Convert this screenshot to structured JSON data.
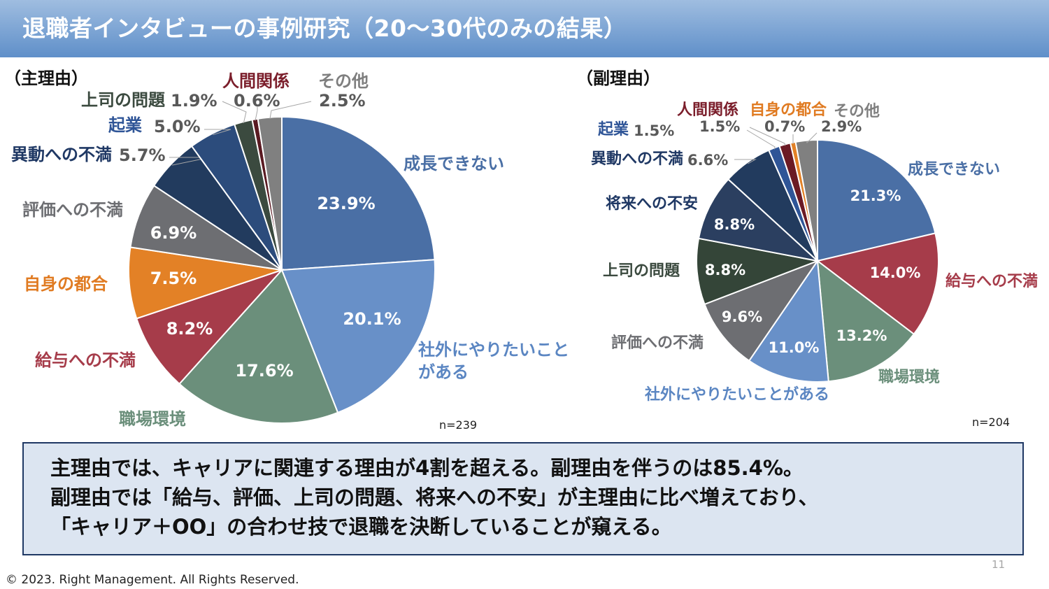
{
  "title": "退職者インタビューの事例研究（20〜30代のみの結果）",
  "chart_data": [
    {
      "type": "pie",
      "title": "（主理由）",
      "n_label": "n=239",
      "slices": [
        {
          "label": "成長できない",
          "value": 23.9,
          "text": "23.9%",
          "color": "#4a6fa5",
          "label_color": "#4a6fa5"
        },
        {
          "label": "社外にやりたいことがある",
          "label_lines": [
            "社外にやりたいこと",
            "がある"
          ],
          "value": 20.1,
          "text": "20.1%",
          "color": "#6890c8",
          "label_color": "#5b86c2"
        },
        {
          "label": "職場環境",
          "value": 17.6,
          "text": "17.6%",
          "color": "#6b8f7b",
          "label_color": "#6b8f7b"
        },
        {
          "label": "給与への不満",
          "value": 8.2,
          "text": "8.2%",
          "color": "#a63c4a",
          "label_color": "#a63c4a"
        },
        {
          "label": "自身の都合",
          "value": 7.5,
          "text": "7.5%",
          "color": "#e38126",
          "label_color": "#e07b22"
        },
        {
          "label": "評価への不満",
          "value": 6.9,
          "text": "6.9%",
          "color": "#6d6e72",
          "label_color": "#6d6e72"
        },
        {
          "label": "異動への不満",
          "value": 5.7,
          "text": "5.7%",
          "color": "#223b5e",
          "label_color": "#1f3864"
        },
        {
          "label": "起業",
          "value": 5.0,
          "text": "5.0%",
          "color": "#2c4c7c",
          "label_color": "#2f5597"
        },
        {
          "label": "上司の問題",
          "value": 1.9,
          "text": "1.9%",
          "color": "#3b4a3f",
          "label_color": "#3b4a3f"
        },
        {
          "label": "人間関係",
          "value": 0.6,
          "text": "0.6%",
          "color": "#5a1a22",
          "label_color": "#7b1e2b"
        },
        {
          "label": "その他",
          "value": 2.5,
          "text": "2.5%",
          "color": "#808080",
          "label_color": "#7f7f7f"
        }
      ]
    },
    {
      "type": "pie",
      "title": "（副理由）",
      "n_label": "n=204",
      "slices": [
        {
          "label": "成長できない",
          "value": 21.3,
          "text": "21.3%",
          "color": "#4a6fa5",
          "label_color": "#4a6fa5"
        },
        {
          "label": "給与への不満",
          "value": 14.0,
          "text": "14.0%",
          "color": "#a63c4a",
          "label_color": "#a63c4a"
        },
        {
          "label": "職場環境",
          "value": 13.2,
          "text": "13.2%",
          "color": "#6b8f7b",
          "label_color": "#6b8f7b"
        },
        {
          "label": "社外にやりたいことがある",
          "value": 11.0,
          "text": "11.0%",
          "color": "#6890c8",
          "label_color": "#5b86c2"
        },
        {
          "label": "評価への不満",
          "value": 9.6,
          "text": "9.6%",
          "color": "#6d6e72",
          "label_color": "#6d6e72"
        },
        {
          "label": "上司の問題",
          "value": 8.8,
          "text": "8.8%",
          "color": "#344538",
          "label_color": "#3b4a3f"
        },
        {
          "label": "将来への不安",
          "value": 8.8,
          "text": "8.8%",
          "color": "#2b3f60",
          "label_color": "#1f3864"
        },
        {
          "label": "異動への不満",
          "value": 6.6,
          "text": "6.6%",
          "color": "#223b5e",
          "label_color": "#1f3864"
        },
        {
          "label": "起業",
          "value": 1.5,
          "text": "1.5%",
          "color": "#2f5597",
          "label_color": "#2f5597"
        },
        {
          "label": "人間関係",
          "value": 1.5,
          "text": "1.5%",
          "color": "#6b1a24",
          "label_color": "#7b1e2b"
        },
        {
          "label": "自身の都合",
          "value": 0.7,
          "text": "0.7%",
          "color": "#e38126",
          "label_color": "#e07b22"
        },
        {
          "label": "その他",
          "value": 2.9,
          "text": "2.9%",
          "color": "#808080",
          "label_color": "#7f7f7f"
        }
      ]
    }
  ],
  "summary": {
    "line1": "主理由では、キャリアに関連する理由が4割を超える。副理由を伴うのは85.4%。",
    "line2": "副理由では「給与、評価、上司の問題、将来への不安」が主理由に比べ増えており、",
    "line3": "「キャリア＋OO」の合わせ技で退職を決断していることが窺える。"
  },
  "page_number": "11",
  "copyright": "© 2023. Right Management. All Rights Reserved."
}
